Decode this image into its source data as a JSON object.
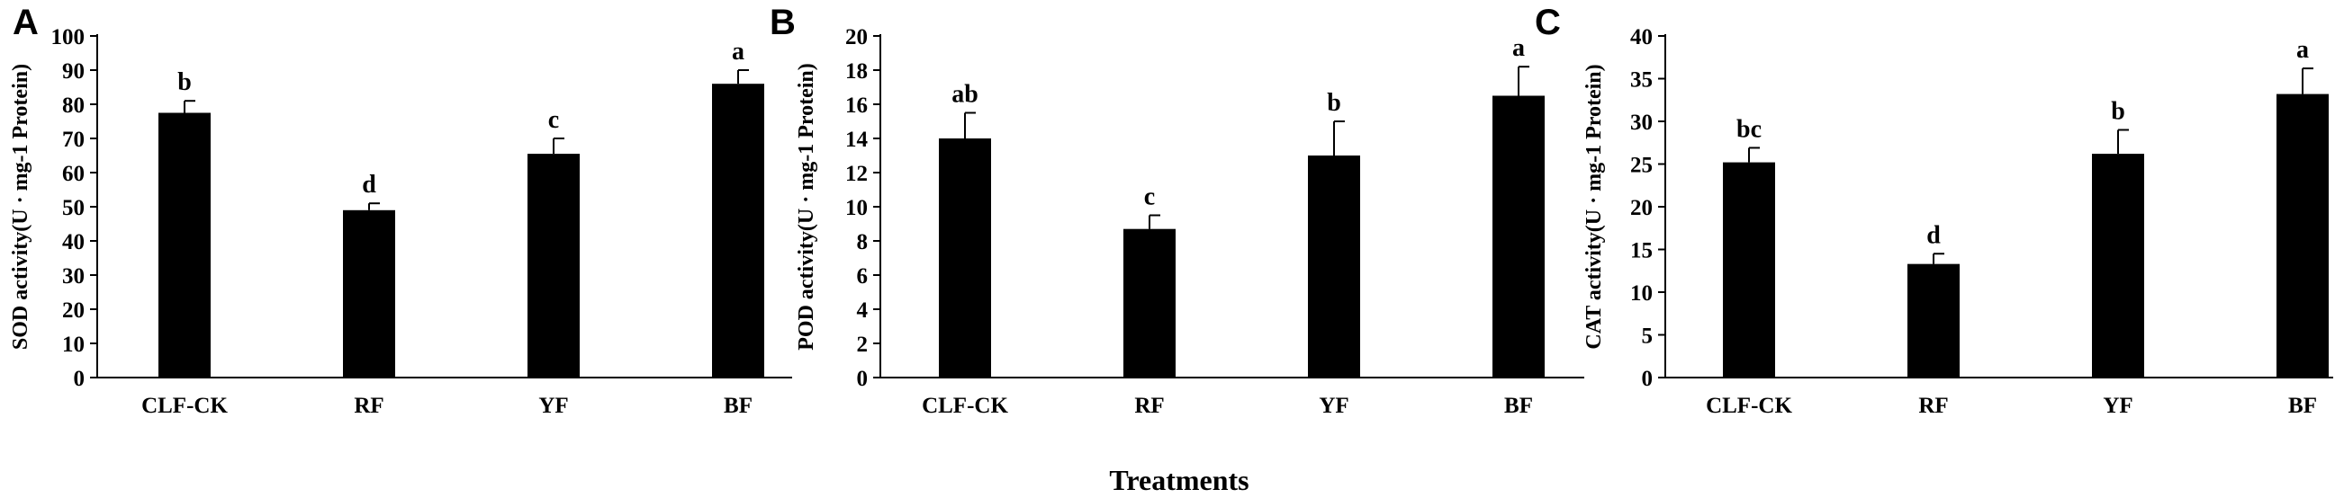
{
  "x_title": "Treatments",
  "chart_data": [
    {
      "panel": "A",
      "type": "bar",
      "ylabel": "SOD activity(U · mg-1 Protein)",
      "ylim": [
        0,
        100
      ],
      "yticks": [
        0,
        10,
        20,
        30,
        40,
        50,
        60,
        70,
        80,
        90,
        100
      ],
      "categories": [
        "CLF-CK",
        "RF",
        "YF",
        "BF"
      ],
      "values": [
        77.5,
        49,
        65.5,
        86
      ],
      "errors": [
        3.5,
        2,
        4.5,
        4
      ],
      "labels": [
        "b",
        "d",
        "c",
        "a"
      ]
    },
    {
      "panel": "B",
      "type": "bar",
      "ylabel": "POD activity(U · mg-1 Protein)",
      "ylim": [
        0,
        20
      ],
      "yticks": [
        0,
        2,
        4,
        6,
        8,
        10,
        12,
        14,
        16,
        18,
        20
      ],
      "categories": [
        "CLF-CK",
        "RF",
        "YF",
        "BF"
      ],
      "values": [
        14,
        8.7,
        13,
        16.5
      ],
      "errors": [
        1.5,
        0.8,
        2,
        1.7
      ],
      "labels": [
        "ab",
        "c",
        "b",
        "a"
      ]
    },
    {
      "panel": "C",
      "type": "bar",
      "ylabel": "CAT activity(U · mg-1 Protein)",
      "ylim": [
        0,
        40
      ],
      "yticks": [
        0,
        5,
        10,
        15,
        20,
        25,
        30,
        35,
        40
      ],
      "categories": [
        "CLF-CK",
        "RF",
        "YF",
        "BF"
      ],
      "values": [
        25.2,
        13.3,
        26.2,
        33.2
      ],
      "errors": [
        1.7,
        1.2,
        2.8,
        3
      ],
      "labels": [
        "bc",
        "d",
        "b",
        "a"
      ]
    }
  ]
}
